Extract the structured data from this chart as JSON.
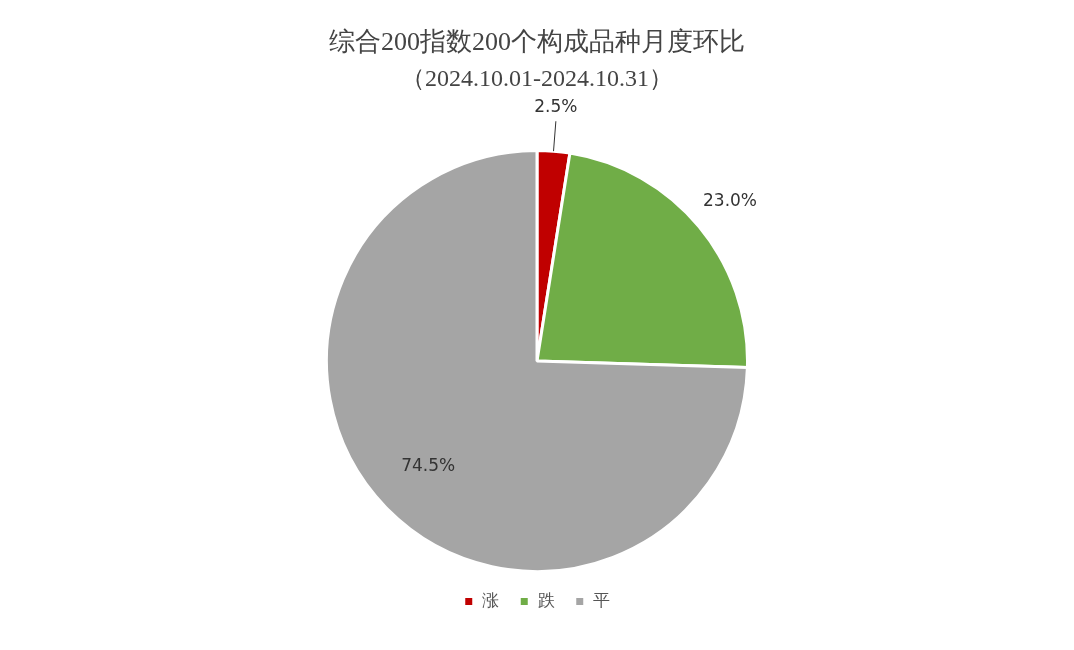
{
  "chart_data": {
    "type": "pie",
    "title": "综合200指数200个构成品种月度环比",
    "subtitle": "（2024.10.01-2024.10.31）",
    "categories": [
      "涨",
      "跌",
      "平"
    ],
    "values": [
      2.5,
      23.0,
      74.5
    ],
    "colors": [
      "#c00000",
      "#70ad47",
      "#a5a5a5"
    ],
    "value_labels": [
      "2.5%",
      "23.0%",
      "74.5%"
    ],
    "legend": "bottom"
  }
}
